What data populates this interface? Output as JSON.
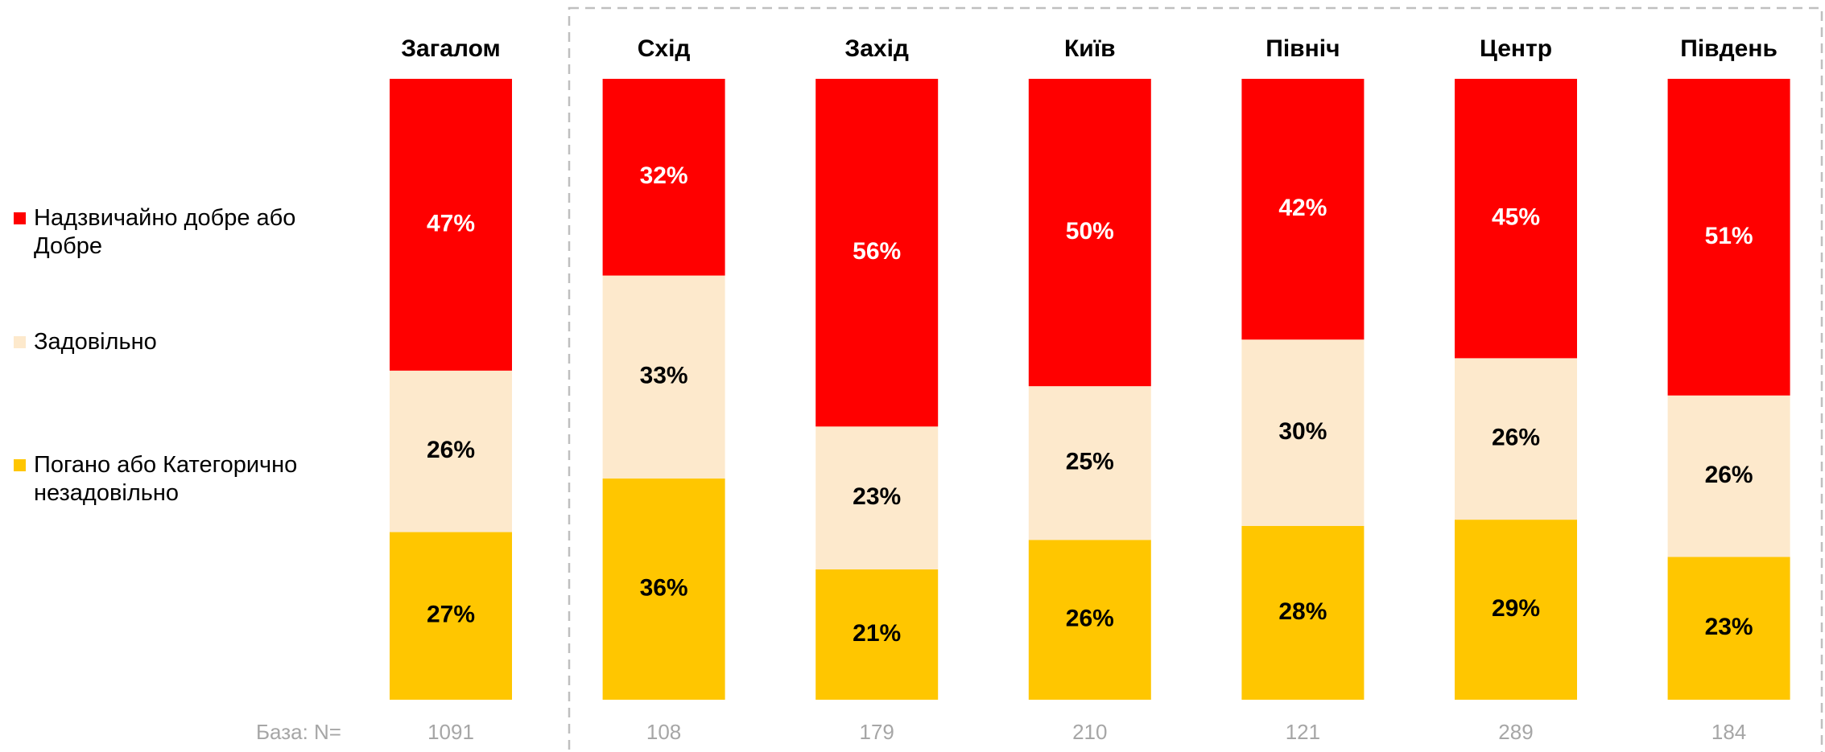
{
  "chart_data": {
    "type": "stacked_bar_100",
    "categories": [
      "Загалом",
      "Схід",
      "Захід",
      "Київ",
      "Північ",
      "Центр",
      "Південь"
    ],
    "series": [
      {
        "name": "Погано або Категорично незадовільно",
        "color": "#ffc600",
        "label_color": "#000000",
        "values": [
          27,
          36,
          21,
          26,
          28,
          29,
          23
        ],
        "value_labels": [
          "27%",
          "36%",
          "21%",
          "26%",
          "28%",
          "29%",
          "23%"
        ]
      },
      {
        "name": "Задовільно",
        "color": "#fde9cc",
        "label_color": "#000000",
        "values": [
          26,
          33,
          23,
          25,
          30,
          26,
          26
        ],
        "value_labels": [
          "26%",
          "33%",
          "23%",
          "25%",
          "30%",
          "26%",
          "26%"
        ]
      },
      {
        "name": "Надзвичайно добре або Добре",
        "color": "#ff0000",
        "label_color": "#ffffff",
        "values": [
          47,
          32,
          56,
          50,
          42,
          45,
          51
        ],
        "value_labels": [
          "47%",
          "32%",
          "56%",
          "50%",
          "42%",
          "45%",
          "51%"
        ]
      }
    ],
    "base_label": "База: N=",
    "base_values": [
      1091,
      108,
      179,
      210,
      121,
      289,
      184
    ]
  }
}
